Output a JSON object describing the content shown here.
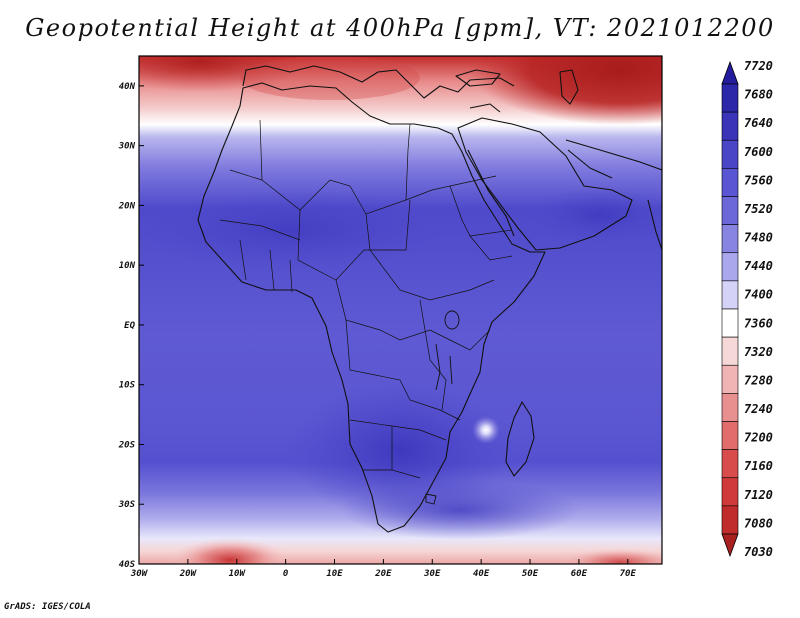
{
  "title": "Geopotential Height at 400hPa [gpm], VT: 2021012200",
  "footer": "GrADS: IGES/COLA",
  "map": {
    "region": "Africa",
    "variable": "Geopotential Height at 400hPa",
    "units": "gpm",
    "valid_time": "2021012200",
    "lon_range": [
      -30,
      77
    ],
    "lat_range": [
      -40,
      45
    ],
    "lon_ticks": [
      {
        "value": -30,
        "label": "30W"
      },
      {
        "value": -20,
        "label": "20W"
      },
      {
        "value": -10,
        "label": "10W"
      },
      {
        "value": 0,
        "label": "0"
      },
      {
        "value": 10,
        "label": "10E"
      },
      {
        "value": 20,
        "label": "20E"
      },
      {
        "value": 30,
        "label": "30E"
      },
      {
        "value": 40,
        "label": "40E"
      },
      {
        "value": 50,
        "label": "50E"
      },
      {
        "value": 60,
        "label": "60E"
      },
      {
        "value": 70,
        "label": "70E"
      }
    ],
    "lat_ticks": [
      {
        "value": 40,
        "label": "40N"
      },
      {
        "value": 30,
        "label": "30N"
      },
      {
        "value": 20,
        "label": "20N"
      },
      {
        "value": 10,
        "label": "10N"
      },
      {
        "value": 0,
        "label": "EQ"
      },
      {
        "value": -10,
        "label": "10S"
      },
      {
        "value": -20,
        "label": "20S"
      },
      {
        "value": -30,
        "label": "30S"
      },
      {
        "value": -40,
        "label": "40S"
      }
    ]
  },
  "colorbar": {
    "levels": [
      {
        "value": 7720,
        "color": "#241c9c"
      },
      {
        "value": 7680,
        "color": "#2c26a8"
      },
      {
        "value": 7640,
        "color": "#3a34b8"
      },
      {
        "value": 7600,
        "color": "#4a44c6"
      },
      {
        "value": 7560,
        "color": "#5a55d2"
      },
      {
        "value": 7520,
        "color": "#6c68da"
      },
      {
        "value": 7480,
        "color": "#8884e2"
      },
      {
        "value": 7440,
        "color": "#aaa7ec"
      },
      {
        "value": 7400,
        "color": "#d4d2f6"
      },
      {
        "value": 7360,
        "color": "#ffffff"
      },
      {
        "value": 7320,
        "color": "#f6d8d8"
      },
      {
        "value": 7280,
        "color": "#f0b4b4"
      },
      {
        "value": 7240,
        "color": "#e89090"
      },
      {
        "value": 7200,
        "color": "#e06c6c"
      },
      {
        "value": 7160,
        "color": "#d84c4c"
      },
      {
        "value": 7120,
        "color": "#d03a3a"
      },
      {
        "value": 7080,
        "color": "#c02c2c"
      },
      {
        "value": 7030,
        "color": "#a82020"
      }
    ]
  }
}
